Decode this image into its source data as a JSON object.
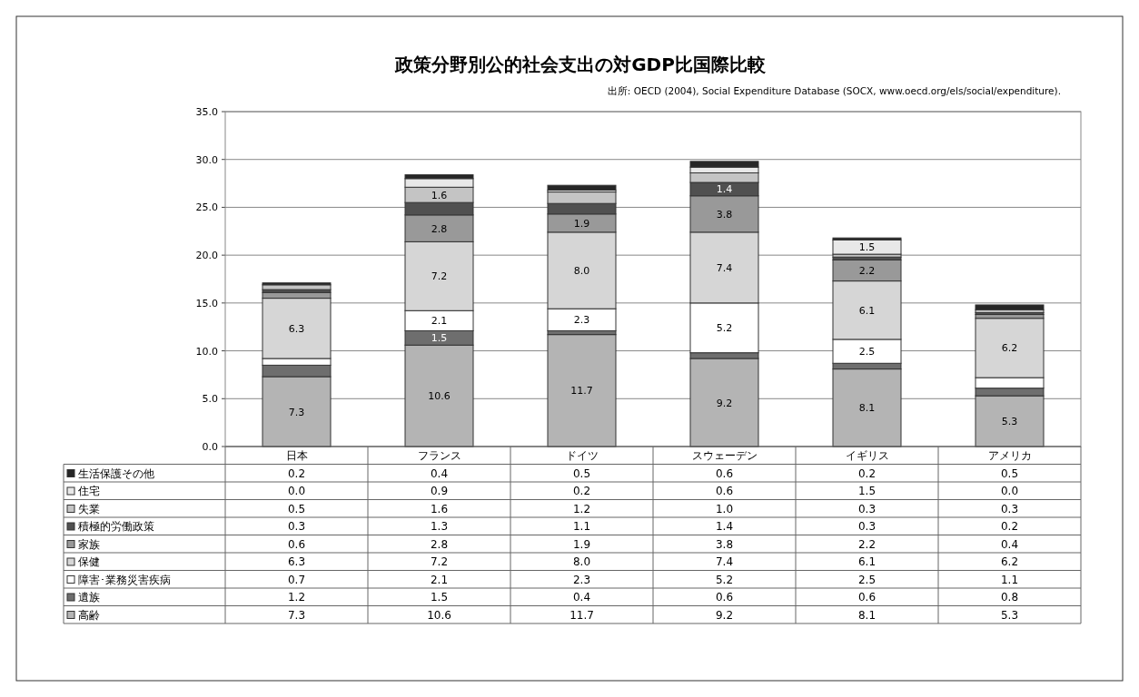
{
  "chart_data": {
    "type": "bar",
    "stacked": true,
    "title": "政策分野別公的社会支出の対GDP比国際比較",
    "annotations": [
      "出所: OECD (2004), Social Expenditure Database (SOCX, www.oecd.org/els/social/expenditure)."
    ],
    "categories": [
      "日本",
      "フランス",
      "ドイツ",
      "スウェーデン",
      "イギリス",
      "アメリカ"
    ],
    "series": [
      {
        "name": "高齢",
        "color": "#b4b4b4",
        "values": [
          7.3,
          10.6,
          11.7,
          9.2,
          8.1,
          5.3
        ],
        "value_labels": [
          "7.3",
          "10.6",
          "11.7",
          "9.2",
          "8.1",
          "5.3"
        ]
      },
      {
        "name": "遺族",
        "color": "#6e6e6e",
        "values": [
          1.2,
          1.5,
          0.4,
          0.6,
          0.6,
          0.8
        ],
        "value_labels": [
          "1.2",
          "1.5",
          "0.4",
          "0.6",
          "0.6",
          "0.8"
        ]
      },
      {
        "name": "障害･業務災害疾病",
        "color": "#ffffff",
        "values": [
          0.7,
          2.1,
          2.3,
          5.2,
          2.5,
          1.1
        ],
        "value_labels": [
          "0.7",
          "2.1",
          "2.3",
          "5.2",
          "2.5",
          "1.1"
        ]
      },
      {
        "name": "保健",
        "color": "#d6d6d6",
        "values": [
          6.3,
          7.2,
          8.0,
          7.4,
          6.1,
          6.2
        ],
        "value_labels": [
          "6.3",
          "7.2",
          "8.0",
          "7.4",
          "6.1",
          "6.2"
        ]
      },
      {
        "name": "家族",
        "color": "#999999",
        "values": [
          0.6,
          2.8,
          1.9,
          3.8,
          2.2,
          0.4
        ],
        "value_labels": [
          "0.6",
          "2.8",
          "1.9",
          "3.8",
          "2.2",
          "0.4"
        ]
      },
      {
        "name": "積極的労働政策",
        "color": "#505050",
        "values": [
          0.3,
          1.3,
          1.1,
          1.4,
          0.3,
          0.2
        ],
        "value_labels": [
          "0.3",
          "1.3",
          "1.1",
          "1.4",
          "0.3",
          "0.2"
        ]
      },
      {
        "name": "失業",
        "color": "#c4c4c4",
        "values": [
          0.5,
          1.6,
          1.2,
          1.0,
          0.3,
          0.3
        ],
        "value_labels": [
          "0.5",
          "1.6",
          "1.2",
          "1.0",
          "0.3",
          "0.3"
        ]
      },
      {
        "name": "住宅",
        "color": "#e8e8e8",
        "values": [
          0.0,
          0.9,
          0.2,
          0.6,
          1.5,
          0.0
        ],
        "value_labels": [
          "0.0",
          "0.9",
          "0.2",
          "0.6",
          "1.5",
          "0.0"
        ]
      },
      {
        "name": "生活保護その他",
        "color": "#262626",
        "values": [
          0.2,
          0.4,
          0.5,
          0.6,
          0.2,
          0.5
        ],
        "value_labels": [
          "0.2",
          "0.4",
          "0.5",
          "0.6",
          "0.2",
          "0.5"
        ]
      }
    ],
    "ylim": [
      0,
      35
    ],
    "yticks": [
      {
        "value": 0,
        "label": "0.0"
      },
      {
        "value": 5,
        "label": "5.0"
      },
      {
        "value": 10,
        "label": "10.0"
      },
      {
        "value": 15,
        "label": "15.0"
      },
      {
        "value": 20,
        "label": "20.0"
      },
      {
        "value": 25,
        "label": "25.0"
      },
      {
        "value": 30,
        "label": "30.0"
      },
      {
        "value": 35,
        "label": "35.0"
      }
    ],
    "grid": "y",
    "legend": "bottom"
  }
}
